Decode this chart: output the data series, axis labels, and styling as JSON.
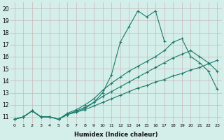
{
  "xlabel": "Humidex (Indice chaleur)",
  "bg_color": "#d4eeea",
  "grid_color": "#c8b8b8",
  "line_color": "#1a7a6a",
  "xlim": [
    -0.5,
    23.5
  ],
  "ylim": [
    10.5,
    20.5
  ],
  "xticks": [
    0,
    1,
    2,
    3,
    4,
    5,
    6,
    7,
    8,
    9,
    10,
    11,
    12,
    13,
    14,
    15,
    16,
    17,
    18,
    19,
    20,
    21,
    22,
    23
  ],
  "yticks": [
    11,
    12,
    13,
    14,
    15,
    16,
    17,
    18,
    19,
    20
  ],
  "line1_x": [
    0,
    1,
    2,
    3,
    4,
    5,
    6,
    7,
    8,
    9,
    10,
    11,
    12,
    13,
    14,
    15,
    16,
    17
  ],
  "line1_y": [
    10.8,
    11.0,
    11.5,
    11.0,
    11.0,
    10.8,
    11.2,
    11.4,
    11.7,
    12.2,
    13.0,
    14.5,
    17.2,
    18.5,
    19.8,
    19.3,
    19.8,
    17.3
  ],
  "line2_x": [
    0,
    1,
    2,
    3,
    4,
    5,
    6,
    7,
    8,
    9,
    10,
    11,
    12,
    13,
    14,
    15,
    16,
    17,
    18,
    19,
    20,
    21,
    22,
    23
  ],
  "line2_y": [
    10.8,
    11.0,
    11.5,
    11.0,
    11.0,
    10.8,
    11.3,
    11.6,
    12.0,
    12.5,
    13.2,
    13.8,
    14.3,
    14.8,
    15.2,
    15.6,
    16.0,
    16.5,
    17.2,
    17.5,
    16.0,
    15.5,
    14.8,
    13.3
  ],
  "line3_x": [
    0,
    1,
    2,
    3,
    4,
    5,
    6,
    7,
    8,
    9,
    10,
    11,
    12,
    13,
    14,
    15,
    16,
    17,
    18,
    19,
    20,
    21,
    22,
    23
  ],
  "line3_y": [
    10.8,
    11.0,
    11.5,
    11.0,
    11.0,
    10.8,
    11.2,
    11.5,
    11.8,
    12.2,
    12.7,
    13.1,
    13.5,
    13.9,
    14.3,
    14.7,
    15.1,
    15.5,
    15.9,
    16.2,
    16.5,
    16.0,
    15.5,
    14.8
  ],
  "line4_x": [
    0,
    1,
    2,
    3,
    4,
    5,
    6,
    7,
    8,
    9,
    10,
    11,
    12,
    13,
    14,
    15,
    16,
    17,
    18,
    19,
    20,
    21,
    22,
    23
  ],
  "line4_y": [
    10.8,
    11.0,
    11.5,
    11.0,
    11.0,
    10.8,
    11.2,
    11.4,
    11.6,
    11.9,
    12.2,
    12.5,
    12.8,
    13.1,
    13.4,
    13.6,
    13.9,
    14.1,
    14.4,
    14.6,
    14.9,
    15.1,
    15.4,
    15.7
  ]
}
